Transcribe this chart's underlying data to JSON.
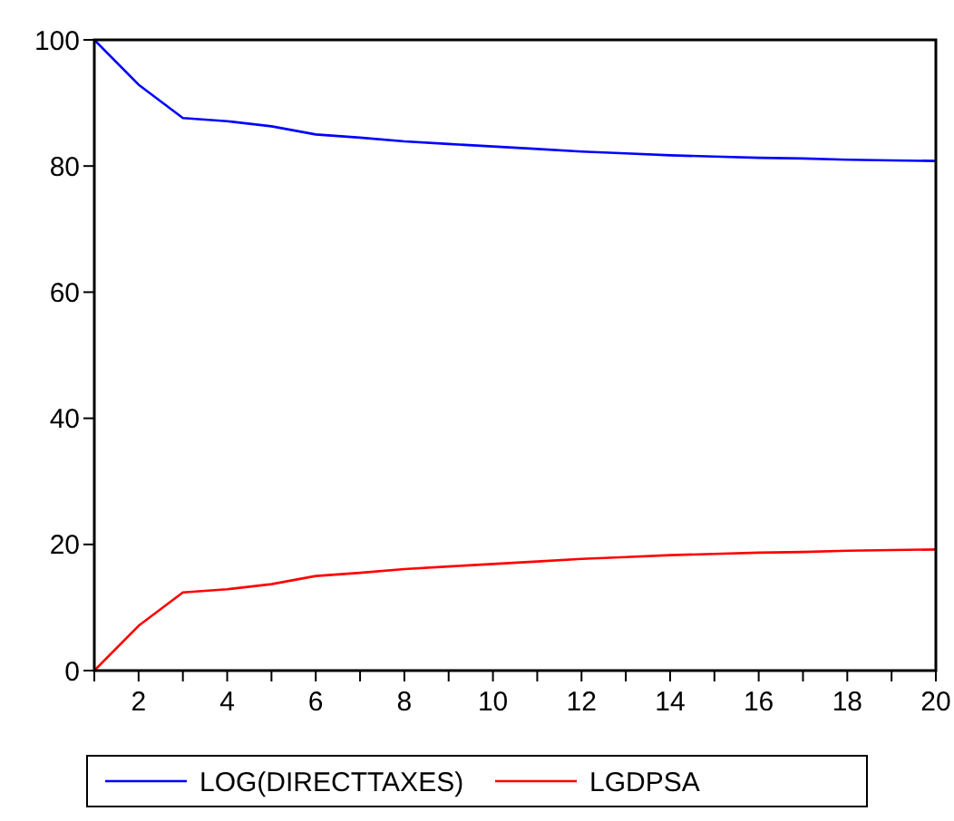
{
  "chart_data": {
    "type": "line",
    "x": [
      1,
      2,
      3,
      4,
      5,
      6,
      7,
      8,
      9,
      10,
      11,
      12,
      13,
      14,
      15,
      16,
      17,
      18,
      19,
      20
    ],
    "series": [
      {
        "name": "LOG(DIRECTTAXES)",
        "color": "#0000ff",
        "values": [
          100,
          92.9,
          87.6,
          87.1,
          86.3,
          85,
          84.5,
          83.9,
          83.5,
          83.1,
          82.7,
          82.3,
          82,
          81.7,
          81.5,
          81.3,
          81.2,
          81,
          80.9,
          80.8
        ]
      },
      {
        "name": "LGDPSA",
        "color": "#ff0000",
        "values": [
          0,
          7.1,
          12.4,
          12.9,
          13.7,
          15,
          15.5,
          16.1,
          16.5,
          16.9,
          17.3,
          17.7,
          18,
          18.3,
          18.5,
          18.7,
          18.8,
          19,
          19.1,
          19.2
        ]
      }
    ],
    "xlim": [
      1,
      20
    ],
    "xticks": [
      {
        "value": 1,
        "label": null
      },
      2,
      {
        "value": 3,
        "label": null
      },
      4,
      {
        "value": 5,
        "label": null
      },
      6,
      {
        "value": 7,
        "label": null
      },
      8,
      {
        "value": 9,
        "label": null
      },
      10,
      {
        "value": 11,
        "label": null
      },
      12,
      {
        "value": 13,
        "label": null
      },
      14,
      {
        "value": 15,
        "label": null
      },
      16,
      {
        "value": 17,
        "label": null
      },
      18,
      {
        "value": 19,
        "label": null
      },
      20
    ],
    "ylim": [
      0,
      100
    ],
    "yticks": [
      0,
      20,
      40,
      60,
      80,
      100
    ],
    "legend": "bottom",
    "grid": false,
    "line_style": "solid",
    "marker": "none"
  }
}
